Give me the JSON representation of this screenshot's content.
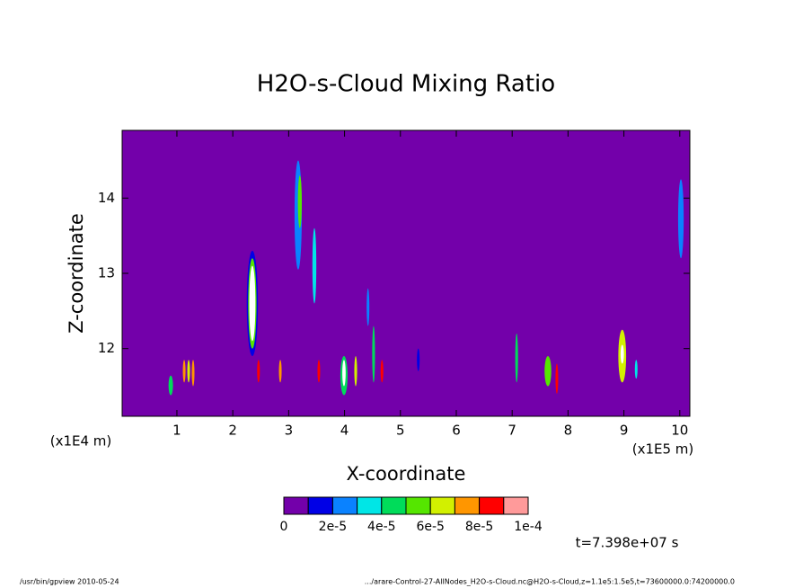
{
  "chart_data": {
    "type": "contour",
    "title": "H2O-s-Cloud Mixing Ratio",
    "x_label": "X-coordinate",
    "y_label": "Z-coordinate",
    "x_unit_label": "(x1E5 m)",
    "y_unit_label": "(x1E4 m)",
    "xlim": [
      0.02,
      10.18
    ],
    "ylim": [
      11.1,
      14.9
    ],
    "xticks": [
      1,
      2,
      3,
      4,
      5,
      6,
      7,
      8,
      9,
      10
    ],
    "yticks": [
      12,
      13,
      14
    ],
    "levels": [
      0,
      1e-05,
      2e-05,
      3e-05,
      4e-05,
      5e-05,
      6e-05,
      7e-05,
      8e-05,
      9e-05,
      0.0001
    ],
    "level_colors": [
      "#7300aa",
      "#0000e6",
      "#0a82ff",
      "#00e6e6",
      "#00dc5a",
      "#55e600",
      "#d2f000",
      "#ff9600",
      "#ff0000",
      "#ff9a9a"
    ],
    "over_color": "#ffffff",
    "colorbar_ticks": [
      0,
      {
        "value": 2e-05,
        "label": "2e-5"
      },
      {
        "value": 4e-05,
        "label": "4e-5"
      },
      {
        "value": 6e-05,
        "label": "6e-5"
      },
      {
        "value": 8e-05,
        "label": "8e-5"
      },
      {
        "value": 0.0001,
        "label": "1e-4"
      }
    ],
    "features": [
      {
        "x": 0.89,
        "width": 0.08,
        "z": [
          11.38,
          11.64
        ],
        "value": 4e-05
      },
      {
        "x": 1.13,
        "width": 0.03,
        "z": [
          11.55,
          11.85
        ],
        "value": 7.5e-05
      },
      {
        "x": 1.21,
        "width": 0.03,
        "z": [
          11.55,
          11.85
        ],
        "value": 6.5e-05
      },
      {
        "x": 1.29,
        "width": 0.03,
        "z": [
          11.5,
          11.85
        ],
        "value": 7e-05
      },
      {
        "x": 2.35,
        "width": 0.2,
        "z": [
          11.9,
          13.3
        ],
        "value": 1.5e-05
      },
      {
        "x": 2.35,
        "width": 0.15,
        "z": [
          12.0,
          13.2
        ],
        "value": 5e-05
      },
      {
        "x": 2.35,
        "width": 0.11,
        "z": [
          12.1,
          13.1
        ],
        "value": 0.00012
      },
      {
        "x": 2.46,
        "width": 0.03,
        "z": [
          11.55,
          11.85
        ],
        "value": 8e-05
      },
      {
        "x": 2.85,
        "width": 0.03,
        "z": [
          11.55,
          11.85
        ],
        "value": 7e-05
      },
      {
        "x": 3.17,
        "width": 0.13,
        "z": [
          13.05,
          14.5
        ],
        "value": 2.5e-05
      },
      {
        "x": 3.2,
        "width": 0.07,
        "z": [
          13.6,
          14.3
        ],
        "value": 5e-05
      },
      {
        "x": 3.46,
        "width": 0.07,
        "z": [
          12.6,
          13.6
        ],
        "value": 3e-05
      },
      {
        "x": 3.54,
        "width": 0.03,
        "z": [
          11.55,
          11.85
        ],
        "value": 8e-05
      },
      {
        "x": 3.99,
        "width": 0.13,
        "z": [
          11.38,
          11.9
        ],
        "value": 4e-05
      },
      {
        "x": 3.99,
        "width": 0.06,
        "z": [
          11.5,
          11.85
        ],
        "value": 0.00011
      },
      {
        "x": 4.2,
        "width": 0.05,
        "z": [
          11.5,
          11.9
        ],
        "value": 6e-05
      },
      {
        "x": 4.42,
        "width": 0.04,
        "z": [
          12.3,
          12.8
        ],
        "value": 2e-05
      },
      {
        "x": 4.52,
        "width": 0.05,
        "z": [
          11.55,
          12.3
        ],
        "value": 4e-05
      },
      {
        "x": 4.67,
        "width": 0.03,
        "z": [
          11.55,
          11.85
        ],
        "value": 8e-05
      },
      {
        "x": 5.32,
        "width": 0.04,
        "z": [
          11.7,
          12.0
        ],
        "value": 1.5e-05
      },
      {
        "x": 7.08,
        "width": 0.05,
        "z": [
          11.55,
          12.2
        ],
        "value": 4e-05
      },
      {
        "x": 7.64,
        "width": 0.12,
        "z": [
          11.5,
          11.9
        ],
        "value": 5e-05
      },
      {
        "x": 7.8,
        "width": 0.03,
        "z": [
          11.4,
          11.8
        ],
        "value": 8e-05
      },
      {
        "x": 8.97,
        "width": 0.14,
        "z": [
          11.55,
          12.25
        ],
        "value": 6e-05
      },
      {
        "x": 8.97,
        "width": 0.06,
        "z": [
          11.8,
          12.05
        ],
        "value": 0.00011
      },
      {
        "x": 9.22,
        "width": 0.03,
        "z": [
          11.6,
          11.85
        ],
        "value": 3e-05
      },
      {
        "x": 10.02,
        "width": 0.1,
        "z": [
          13.2,
          14.25
        ],
        "value": 2.5e-05
      }
    ],
    "time_label": "t=7.398e+07 s",
    "footer_left": "/usr/bin/gpview   2010-05-24",
    "footer_right": ".../arare-Control-27-AllNodes_H2O-s-Cloud.nc@H2O-s-Cloud,z=1.1e5:1.5e5,t=73600000.0:74200000.0"
  }
}
